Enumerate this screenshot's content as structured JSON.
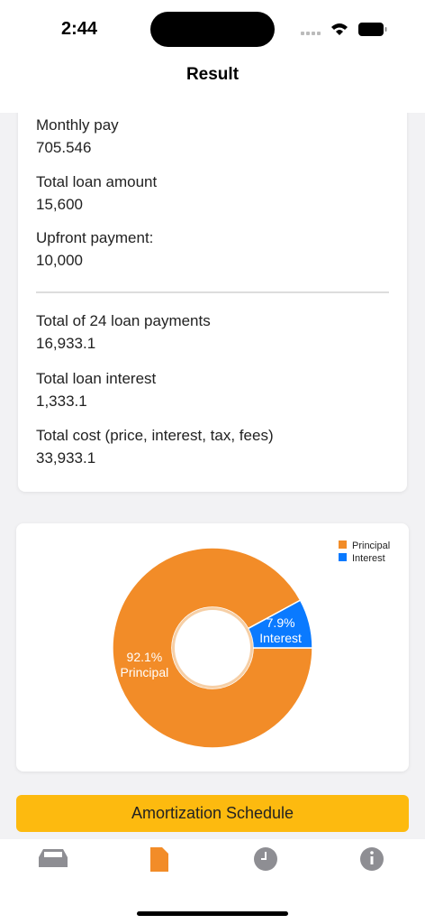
{
  "status_bar": {
    "time": "2:44"
  },
  "header": {
    "title": "Result"
  },
  "summary": {
    "groups": [
      [
        {
          "label": "Monthly pay",
          "value": "705.546"
        },
        {
          "label": "Total loan amount",
          "value": "15,600"
        },
        {
          "label": "Upfront payment:",
          "value": "10,000"
        }
      ],
      [
        {
          "label": "Total of 24 loan payments",
          "value": "16,933.1"
        },
        {
          "label": "Total loan interest",
          "value": "1,333.1"
        },
        {
          "label": "Total cost (price, interest, tax, fees)",
          "value": "33,933.1"
        }
      ]
    ]
  },
  "chart_data": {
    "type": "pie",
    "donut": true,
    "legend": "top-right",
    "categories": [
      "Principal",
      "Interest"
    ],
    "values": [
      92.1,
      7.9
    ],
    "value_labels": [
      "92.1%",
      "7.9%"
    ],
    "colors": [
      "#F28C28",
      "#0A7AFF"
    ]
  },
  "button": {
    "label": "Amortization Schedule"
  },
  "tab_bar": {
    "selected": 1,
    "tabs": [
      {
        "label": "Calculator"
      },
      {
        "label": "Result"
      },
      {
        "label": "History"
      },
      {
        "label": "Info"
      }
    ]
  }
}
